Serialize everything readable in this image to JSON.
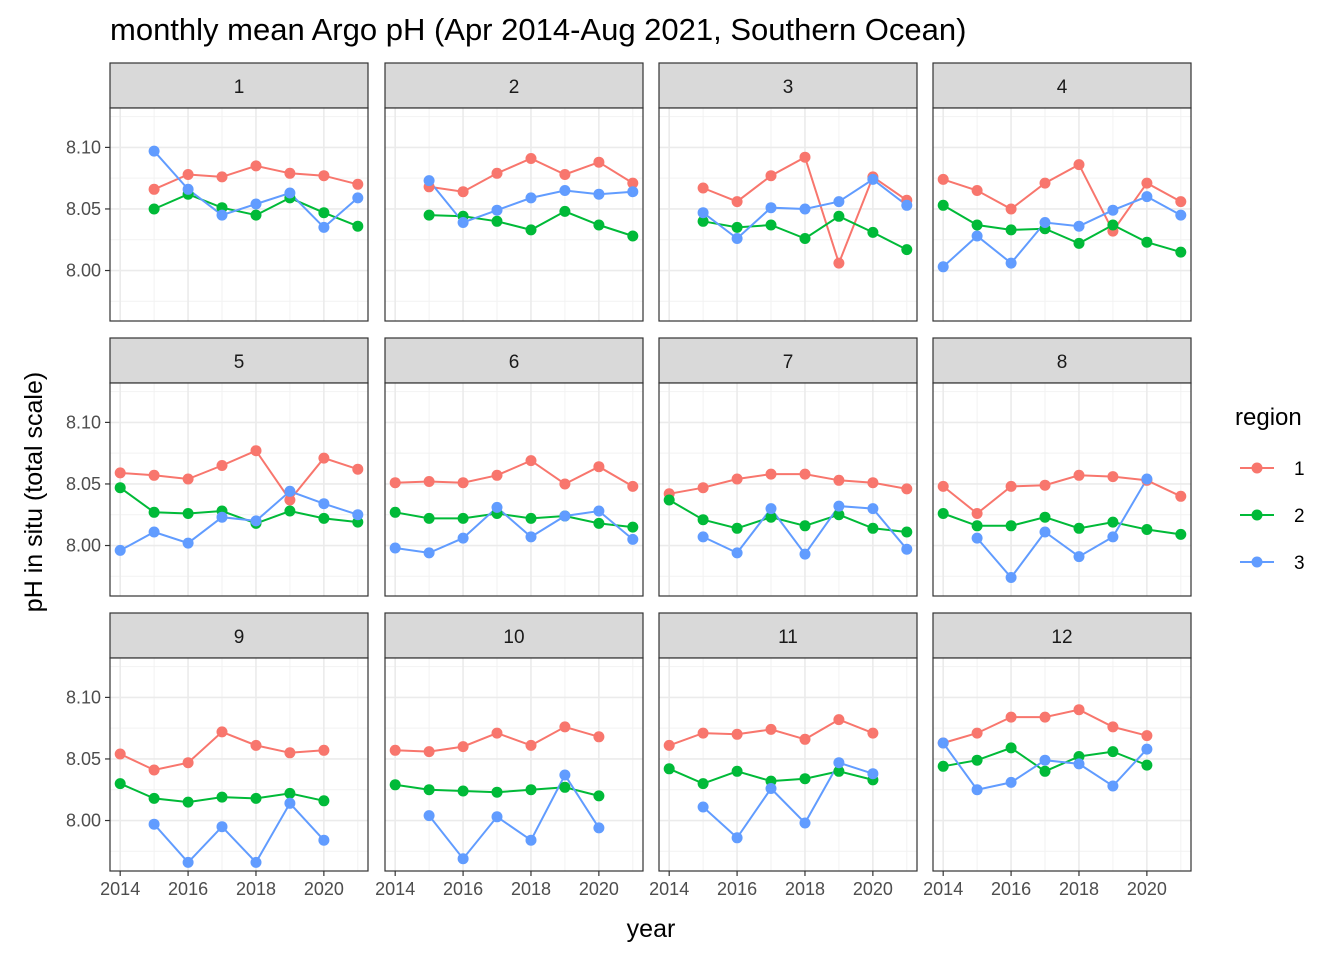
{
  "chart_data": {
    "type": "line",
    "title": "monthly mean Argo pH (Apr 2014-Aug 2021, Southern Ocean)",
    "xlabel": "year",
    "ylabel": "pH in situ (total scale)",
    "xlim": [
      2013.7,
      2021.3
    ],
    "ylim": [
      7.959,
      8.132
    ],
    "x_ticks": [
      2014,
      2016,
      2018,
      2020
    ],
    "y_ticks": [
      8.0,
      8.05,
      8.1
    ],
    "x_tick_labels": [
      "2014",
      "2016",
      "2018",
      "2020"
    ],
    "y_tick_labels": [
      "8.00",
      "8.05",
      "8.10"
    ],
    "grid": true,
    "legend": {
      "title": "region",
      "position": "right",
      "entries": [
        {
          "label": "1",
          "color": "#F8766D"
        },
        {
          "label": "2",
          "color": "#00BA38"
        },
        {
          "label": "3",
          "color": "#619CFF"
        }
      ]
    },
    "facet_variable": "month",
    "facets": [
      {
        "label": "1",
        "series": [
          {
            "name": "1",
            "x": [
              2015,
              2016,
              2017,
              2018,
              2019,
              2020,
              2021
            ],
            "y": [
              8.066,
              8.078,
              8.076,
              8.085,
              8.079,
              8.077,
              8.07
            ]
          },
          {
            "name": "2",
            "x": [
              2015,
              2016,
              2017,
              2018,
              2019,
              2020,
              2021
            ],
            "y": [
              8.05,
              8.062,
              8.051,
              8.045,
              8.059,
              8.047,
              8.036
            ]
          },
          {
            "name": "3",
            "x": [
              2015,
              2016,
              2017,
              2018,
              2019,
              2020,
              2021
            ],
            "y": [
              8.097,
              8.066,
              8.045,
              8.054,
              8.063,
              8.035,
              8.059
            ]
          }
        ]
      },
      {
        "label": "2",
        "series": [
          {
            "name": "1",
            "x": [
              2015,
              2016,
              2017,
              2018,
              2019,
              2020,
              2021
            ],
            "y": [
              8.068,
              8.064,
              8.079,
              8.091,
              8.078,
              8.088,
              8.071
            ]
          },
          {
            "name": "2",
            "x": [
              2015,
              2016,
              2017,
              2018,
              2019,
              2020,
              2021
            ],
            "y": [
              8.045,
              8.044,
              8.04,
              8.033,
              8.048,
              8.037,
              8.028
            ]
          },
          {
            "name": "3",
            "x": [
              2015,
              2016,
              2017,
              2018,
              2019,
              2020,
              2021
            ],
            "y": [
              8.073,
              8.039,
              8.049,
              8.059,
              8.065,
              8.062,
              8.064
            ]
          }
        ]
      },
      {
        "label": "3",
        "series": [
          {
            "name": "1",
            "x": [
              2015,
              2016,
              2017,
              2018,
              2019,
              2020,
              2021
            ],
            "y": [
              8.067,
              8.056,
              8.077,
              8.092,
              8.006,
              8.076,
              8.057
            ]
          },
          {
            "name": "2",
            "x": [
              2015,
              2016,
              2017,
              2018,
              2019,
              2020,
              2021
            ],
            "y": [
              8.04,
              8.035,
              8.037,
              8.026,
              8.044,
              8.031,
              8.017
            ]
          },
          {
            "name": "3",
            "x": [
              2015,
              2016,
              2017,
              2018,
              2019,
              2020,
              2021
            ],
            "y": [
              8.047,
              8.026,
              8.051,
              8.05,
              8.056,
              8.074,
              8.053
            ]
          }
        ]
      },
      {
        "label": "4",
        "series": [
          {
            "name": "1",
            "x": [
              2014,
              2015,
              2016,
              2017,
              2018,
              2019,
              2020,
              2021
            ],
            "y": [
              8.074,
              8.065,
              8.05,
              8.071,
              8.086,
              8.032,
              8.071,
              8.056
            ]
          },
          {
            "name": "2",
            "x": [
              2014,
              2015,
              2016,
              2017,
              2018,
              2019,
              2020,
              2021
            ],
            "y": [
              8.053,
              8.037,
              8.033,
              8.034,
              8.022,
              8.037,
              8.023,
              8.015
            ]
          },
          {
            "name": "3",
            "x": [
              2014,
              2015,
              2016,
              2017,
              2018,
              2019,
              2020,
              2021
            ],
            "y": [
              8.003,
              8.028,
              8.006,
              8.039,
              8.036,
              8.049,
              8.06,
              8.045
            ]
          }
        ]
      },
      {
        "label": "5",
        "series": [
          {
            "name": "1",
            "x": [
              2014,
              2015,
              2016,
              2017,
              2018,
              2019,
              2020,
              2021
            ],
            "y": [
              8.059,
              8.057,
              8.054,
              8.065,
              8.077,
              8.037,
              8.071,
              8.062
            ]
          },
          {
            "name": "2",
            "x": [
              2014,
              2015,
              2016,
              2017,
              2018,
              2019,
              2020,
              2021
            ],
            "y": [
              8.047,
              8.027,
              8.026,
              8.028,
              8.018,
              8.028,
              8.022,
              8.019
            ]
          },
          {
            "name": "3",
            "x": [
              2014,
              2015,
              2016,
              2017,
              2018,
              2019,
              2020,
              2021
            ],
            "y": [
              7.996,
              8.011,
              8.002,
              8.023,
              8.02,
              8.044,
              8.034,
              8.025
            ]
          }
        ]
      },
      {
        "label": "6",
        "series": [
          {
            "name": "1",
            "x": [
              2014,
              2015,
              2016,
              2017,
              2018,
              2019,
              2020,
              2021
            ],
            "y": [
              8.051,
              8.052,
              8.051,
              8.057,
              8.069,
              8.05,
              8.064,
              8.048
            ]
          },
          {
            "name": "2",
            "x": [
              2014,
              2015,
              2016,
              2017,
              2018,
              2019,
              2020,
              2021
            ],
            "y": [
              8.027,
              8.022,
              8.022,
              8.026,
              8.022,
              8.024,
              8.018,
              8.015
            ]
          },
          {
            "name": "3",
            "x": [
              2014,
              2015,
              2016,
              2017,
              2018,
              2019,
              2020,
              2021
            ],
            "y": [
              7.998,
              7.994,
              8.006,
              8.031,
              8.007,
              8.024,
              8.028,
              8.005
            ]
          }
        ]
      },
      {
        "label": "7",
        "series": [
          {
            "name": "1",
            "x": [
              2014,
              2015,
              2016,
              2017,
              2018,
              2019,
              2020,
              2021
            ],
            "y": [
              8.042,
              8.047,
              8.054,
              8.058,
              8.058,
              8.053,
              8.051,
              8.046
            ]
          },
          {
            "name": "2",
            "x": [
              2014,
              2015,
              2016,
              2017,
              2018,
              2019,
              2020,
              2021
            ],
            "y": [
              8.037,
              8.021,
              8.014,
              8.023,
              8.016,
              8.025,
              8.014,
              8.011
            ]
          },
          {
            "name": "3",
            "x": [
              2015,
              2016,
              2017,
              2018,
              2019,
              2020,
              2021
            ],
            "y": [
              8.007,
              7.994,
              8.03,
              7.993,
              8.032,
              8.03,
              7.997
            ]
          }
        ]
      },
      {
        "label": "8",
        "series": [
          {
            "name": "1",
            "x": [
              2014,
              2015,
              2016,
              2017,
              2018,
              2019,
              2020,
              2021
            ],
            "y": [
              8.048,
              8.026,
              8.048,
              8.049,
              8.057,
              8.056,
              8.053,
              8.04
            ]
          },
          {
            "name": "2",
            "x": [
              2014,
              2015,
              2016,
              2017,
              2018,
              2019,
              2020,
              2021
            ],
            "y": [
              8.026,
              8.016,
              8.016,
              8.023,
              8.014,
              8.019,
              8.013,
              8.009
            ]
          },
          {
            "name": "3",
            "x": [
              2015,
              2016,
              2017,
              2018,
              2019,
              2020
            ],
            "y": [
              8.006,
              7.974,
              8.011,
              7.991,
              8.007,
              8.054
            ]
          }
        ]
      },
      {
        "label": "9",
        "series": [
          {
            "name": "1",
            "x": [
              2014,
              2015,
              2016,
              2017,
              2018,
              2019,
              2020
            ],
            "y": [
              8.054,
              8.041,
              8.047,
              8.072,
              8.061,
              8.055,
              8.057
            ]
          },
          {
            "name": "2",
            "x": [
              2014,
              2015,
              2016,
              2017,
              2018,
              2019,
              2020
            ],
            "y": [
              8.03,
              8.018,
              8.015,
              8.019,
              8.018,
              8.022,
              8.016
            ]
          },
          {
            "name": "3",
            "x": [
              2015,
              2016,
              2017,
              2018,
              2019,
              2020
            ],
            "y": [
              7.997,
              7.966,
              7.995,
              7.966,
              8.014,
              7.984
            ]
          }
        ]
      },
      {
        "label": "10",
        "series": [
          {
            "name": "1",
            "x": [
              2014,
              2015,
              2016,
              2017,
              2018,
              2019,
              2020
            ],
            "y": [
              8.057,
              8.056,
              8.06,
              8.071,
              8.061,
              8.076,
              8.068
            ]
          },
          {
            "name": "2",
            "x": [
              2014,
              2015,
              2016,
              2017,
              2018,
              2019,
              2020
            ],
            "y": [
              8.029,
              8.025,
              8.024,
              8.023,
              8.025,
              8.027,
              8.02
            ]
          },
          {
            "name": "3",
            "x": [
              2015,
              2016,
              2017,
              2018,
              2019,
              2020
            ],
            "y": [
              8.004,
              7.969,
              8.003,
              7.984,
              8.037,
              7.994
            ]
          }
        ]
      },
      {
        "label": "11",
        "series": [
          {
            "name": "1",
            "x": [
              2014,
              2015,
              2016,
              2017,
              2018,
              2019,
              2020
            ],
            "y": [
              8.061,
              8.071,
              8.07,
              8.074,
              8.066,
              8.082,
              8.071
            ]
          },
          {
            "name": "2",
            "x": [
              2014,
              2015,
              2016,
              2017,
              2018,
              2019,
              2020
            ],
            "y": [
              8.042,
              8.03,
              8.04,
              8.032,
              8.034,
              8.04,
              8.033
            ]
          },
          {
            "name": "3",
            "x": [
              2015,
              2016,
              2017,
              2018,
              2019,
              2020
            ],
            "y": [
              8.011,
              7.986,
              8.026,
              7.998,
              8.047,
              8.038
            ]
          }
        ]
      },
      {
        "label": "12",
        "series": [
          {
            "name": "1",
            "x": [
              2014,
              2015,
              2016,
              2017,
              2018,
              2019,
              2020
            ],
            "y": [
              8.063,
              8.071,
              8.084,
              8.084,
              8.09,
              8.076,
              8.069
            ]
          },
          {
            "name": "2",
            "x": [
              2014,
              2015,
              2016,
              2017,
              2018,
              2019,
              2020
            ],
            "y": [
              8.044,
              8.049,
              8.059,
              8.04,
              8.052,
              8.056,
              8.045
            ]
          },
          {
            "name": "3",
            "x": [
              2014,
              2015,
              2016,
              2017,
              2018,
              2019,
              2020
            ],
            "y": [
              8.063,
              8.025,
              8.031,
              8.049,
              8.046,
              8.028,
              8.058
            ]
          }
        ]
      }
    ]
  }
}
